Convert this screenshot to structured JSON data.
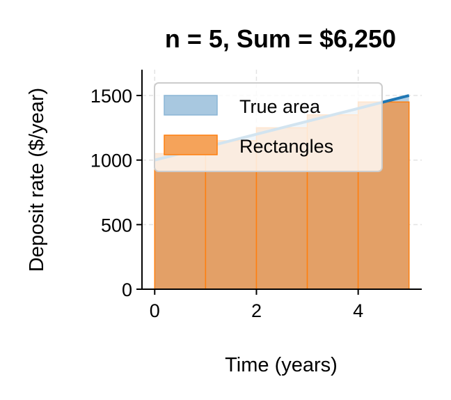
{
  "chart_data": {
    "type": "bar",
    "title": "n = 5, Sum = $6,250",
    "xlabel": "Time (years)",
    "ylabel": "Deposit rate ($/year)",
    "xlim": [
      -0.25,
      5.25
    ],
    "ylim": [
      0,
      1700
    ],
    "xticks": [
      0,
      2,
      4
    ],
    "yticks": [
      0,
      500,
      1000,
      1500
    ],
    "grid": true,
    "legend_position": "upper-left",
    "true_area": {
      "name": "True area",
      "color": "#1f77b4",
      "fill_color": "#a8c8e0",
      "x": [
        0,
        5
      ],
      "y": [
        1000,
        1500
      ]
    },
    "rectangles": {
      "name": "Rectangles",
      "color": "#ff7f0e",
      "fill_color": "#f5a35a",
      "width": 1,
      "x_left": [
        0,
        1,
        2,
        3,
        4
      ],
      "values": [
        1050,
        1150,
        1250,
        1350,
        1450
      ]
    }
  }
}
